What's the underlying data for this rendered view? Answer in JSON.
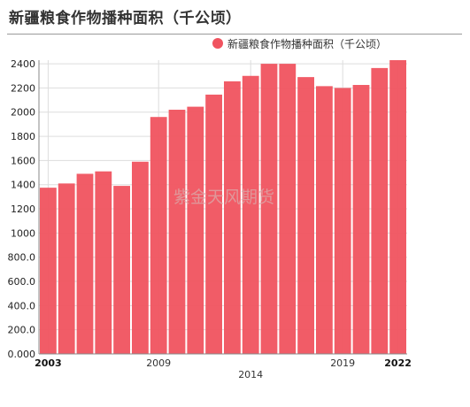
{
  "header": {
    "title": "新疆粮食作物播种面积（千公顷）"
  },
  "legend": {
    "label": "新疆粮食作物播种面积（千公顷）"
  },
  "watermark": "紫金天风期货",
  "colors": {
    "bar": "#f0535f",
    "grid": "#dddddd",
    "axis": "#888888"
  },
  "chart_data": {
    "type": "bar",
    "title": "新疆粮食作物播种面积（千公顷）",
    "xlabel": "",
    "ylabel": "",
    "categories": [
      "2003",
      "2004",
      "2005",
      "2006",
      "2007",
      "2008",
      "2009",
      "2010",
      "2011",
      "2012",
      "2013",
      "2014",
      "2015",
      "2016",
      "2017",
      "2018",
      "2019",
      "2020",
      "2021",
      "2022"
    ],
    "x_tick_labels": [
      {
        "label": "2003",
        "category": "2003",
        "row": 1,
        "bold": true
      },
      {
        "label": "2009",
        "category": "2009",
        "row": 1,
        "bold": false
      },
      {
        "label": "2014",
        "category": "2014",
        "row": 2,
        "bold": false
      },
      {
        "label": "2019",
        "category": "2019",
        "row": 1,
        "bold": false
      },
      {
        "label": "2022",
        "category": "2022",
        "row": 1,
        "bold": true
      }
    ],
    "series": [
      {
        "name": "新疆粮食作物播种面积（千公顷）",
        "values": [
          1375,
          1410,
          1490,
          1510,
          1390,
          1590,
          1960,
          2020,
          2045,
          2145,
          2255,
          2300,
          2400,
          2400,
          2290,
          2215,
          2200,
          2225,
          2365,
          2430
        ]
      }
    ],
    "ylim": [
      0,
      2430
    ],
    "y_ticks": [
      {
        "value": 0,
        "label": "0.000"
      },
      {
        "value": 200,
        "label": "200.0"
      },
      {
        "value": 400,
        "label": "400.0"
      },
      {
        "value": 600,
        "label": "600.0"
      },
      {
        "value": 800,
        "label": "800.0"
      },
      {
        "value": 1000,
        "label": "1000"
      },
      {
        "value": 1200,
        "label": "1200"
      },
      {
        "value": 1400,
        "label": "1400"
      },
      {
        "value": 1600,
        "label": "1600"
      },
      {
        "value": 1800,
        "label": "1800"
      },
      {
        "value": 2000,
        "label": "2000"
      },
      {
        "value": 2200,
        "label": "2200"
      },
      {
        "value": 2400,
        "label": "2400"
      }
    ],
    "grid": true,
    "legend_position": "top-right"
  }
}
